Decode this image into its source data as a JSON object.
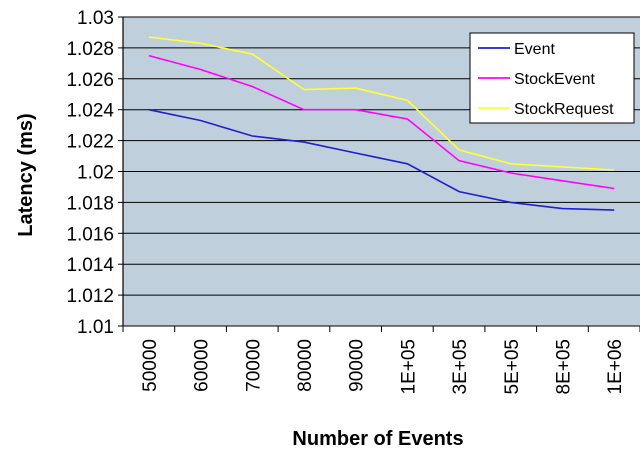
{
  "chart_data": {
    "type": "line",
    "title": "",
    "xlabel": "Number of Events",
    "ylabel": "Latency (ms)",
    "categories": [
      "50000",
      "60000",
      "70000",
      "80000",
      "90000",
      "1E+05",
      "3E+05",
      "5E+05",
      "8E+05",
      "1E+06"
    ],
    "ylim": [
      1.01,
      1.03
    ],
    "yticks": [
      "1.01",
      "1.012",
      "1.014",
      "1.016",
      "1.018",
      "1.02",
      "1.022",
      "1.024",
      "1.026",
      "1.028",
      "1.03"
    ],
    "grid": "horizontal",
    "legend_position": "top-right",
    "plot_background": "#bfd0dc",
    "series": [
      {
        "name": "Event",
        "color": "#1f1fd0",
        "values": [
          1.024,
          1.0233,
          1.0223,
          1.0219,
          1.0212,
          1.0205,
          1.0187,
          1.018,
          1.0176,
          1.0175
        ]
      },
      {
        "name": "StockEvent",
        "color": "#ff00ff",
        "values": [
          1.0275,
          1.0266,
          1.0255,
          1.024,
          1.024,
          1.0234,
          1.0207,
          1.0199,
          1.0194,
          1.0189
        ]
      },
      {
        "name": "StockRequest",
        "color": "#ffff33",
        "values": [
          1.0287,
          1.0283,
          1.0276,
          1.0253,
          1.0254,
          1.0246,
          1.0214,
          1.0205,
          1.0203,
          1.0201
        ]
      }
    ]
  }
}
